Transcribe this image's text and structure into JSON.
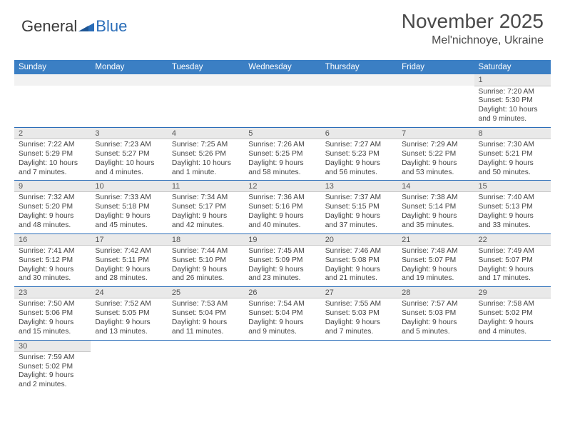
{
  "logo": {
    "text_dark": "General",
    "text_blue": "Blue",
    "triangle_color": "#2a6db8"
  },
  "header": {
    "month_title": "November 2025",
    "location": "Mel'nichnoye, Ukraine"
  },
  "colors": {
    "header_bg": "#3b7fc4",
    "header_text": "#ffffff",
    "daynum_bg": "#e9e9e9",
    "daynum_text": "#555555",
    "cell_text": "#444444",
    "rule": "#2a6db8"
  },
  "weekdays": [
    "Sunday",
    "Monday",
    "Tuesday",
    "Wednesday",
    "Thursday",
    "Friday",
    "Saturday"
  ],
  "weeks": [
    {
      "days": [
        null,
        null,
        null,
        null,
        null,
        null,
        {
          "num": "1",
          "sunrise": "Sunrise: 7:20 AM",
          "sunset": "Sunset: 5:30 PM",
          "daylight1": "Daylight: 10 hours",
          "daylight2": "and 9 minutes."
        }
      ]
    },
    {
      "days": [
        {
          "num": "2",
          "sunrise": "Sunrise: 7:22 AM",
          "sunset": "Sunset: 5:29 PM",
          "daylight1": "Daylight: 10 hours",
          "daylight2": "and 7 minutes."
        },
        {
          "num": "3",
          "sunrise": "Sunrise: 7:23 AM",
          "sunset": "Sunset: 5:27 PM",
          "daylight1": "Daylight: 10 hours",
          "daylight2": "and 4 minutes."
        },
        {
          "num": "4",
          "sunrise": "Sunrise: 7:25 AM",
          "sunset": "Sunset: 5:26 PM",
          "daylight1": "Daylight: 10 hours",
          "daylight2": "and 1 minute."
        },
        {
          "num": "5",
          "sunrise": "Sunrise: 7:26 AM",
          "sunset": "Sunset: 5:25 PM",
          "daylight1": "Daylight: 9 hours",
          "daylight2": "and 58 minutes."
        },
        {
          "num": "6",
          "sunrise": "Sunrise: 7:27 AM",
          "sunset": "Sunset: 5:23 PM",
          "daylight1": "Daylight: 9 hours",
          "daylight2": "and 56 minutes."
        },
        {
          "num": "7",
          "sunrise": "Sunrise: 7:29 AM",
          "sunset": "Sunset: 5:22 PM",
          "daylight1": "Daylight: 9 hours",
          "daylight2": "and 53 minutes."
        },
        {
          "num": "8",
          "sunrise": "Sunrise: 7:30 AM",
          "sunset": "Sunset: 5:21 PM",
          "daylight1": "Daylight: 9 hours",
          "daylight2": "and 50 minutes."
        }
      ]
    },
    {
      "days": [
        {
          "num": "9",
          "sunrise": "Sunrise: 7:32 AM",
          "sunset": "Sunset: 5:20 PM",
          "daylight1": "Daylight: 9 hours",
          "daylight2": "and 48 minutes."
        },
        {
          "num": "10",
          "sunrise": "Sunrise: 7:33 AM",
          "sunset": "Sunset: 5:18 PM",
          "daylight1": "Daylight: 9 hours",
          "daylight2": "and 45 minutes."
        },
        {
          "num": "11",
          "sunrise": "Sunrise: 7:34 AM",
          "sunset": "Sunset: 5:17 PM",
          "daylight1": "Daylight: 9 hours",
          "daylight2": "and 42 minutes."
        },
        {
          "num": "12",
          "sunrise": "Sunrise: 7:36 AM",
          "sunset": "Sunset: 5:16 PM",
          "daylight1": "Daylight: 9 hours",
          "daylight2": "and 40 minutes."
        },
        {
          "num": "13",
          "sunrise": "Sunrise: 7:37 AM",
          "sunset": "Sunset: 5:15 PM",
          "daylight1": "Daylight: 9 hours",
          "daylight2": "and 37 minutes."
        },
        {
          "num": "14",
          "sunrise": "Sunrise: 7:38 AM",
          "sunset": "Sunset: 5:14 PM",
          "daylight1": "Daylight: 9 hours",
          "daylight2": "and 35 minutes."
        },
        {
          "num": "15",
          "sunrise": "Sunrise: 7:40 AM",
          "sunset": "Sunset: 5:13 PM",
          "daylight1": "Daylight: 9 hours",
          "daylight2": "and 33 minutes."
        }
      ]
    },
    {
      "days": [
        {
          "num": "16",
          "sunrise": "Sunrise: 7:41 AM",
          "sunset": "Sunset: 5:12 PM",
          "daylight1": "Daylight: 9 hours",
          "daylight2": "and 30 minutes."
        },
        {
          "num": "17",
          "sunrise": "Sunrise: 7:42 AM",
          "sunset": "Sunset: 5:11 PM",
          "daylight1": "Daylight: 9 hours",
          "daylight2": "and 28 minutes."
        },
        {
          "num": "18",
          "sunrise": "Sunrise: 7:44 AM",
          "sunset": "Sunset: 5:10 PM",
          "daylight1": "Daylight: 9 hours",
          "daylight2": "and 26 minutes."
        },
        {
          "num": "19",
          "sunrise": "Sunrise: 7:45 AM",
          "sunset": "Sunset: 5:09 PM",
          "daylight1": "Daylight: 9 hours",
          "daylight2": "and 23 minutes."
        },
        {
          "num": "20",
          "sunrise": "Sunrise: 7:46 AM",
          "sunset": "Sunset: 5:08 PM",
          "daylight1": "Daylight: 9 hours",
          "daylight2": "and 21 minutes."
        },
        {
          "num": "21",
          "sunrise": "Sunrise: 7:48 AM",
          "sunset": "Sunset: 5:07 PM",
          "daylight1": "Daylight: 9 hours",
          "daylight2": "and 19 minutes."
        },
        {
          "num": "22",
          "sunrise": "Sunrise: 7:49 AM",
          "sunset": "Sunset: 5:07 PM",
          "daylight1": "Daylight: 9 hours",
          "daylight2": "and 17 minutes."
        }
      ]
    },
    {
      "days": [
        {
          "num": "23",
          "sunrise": "Sunrise: 7:50 AM",
          "sunset": "Sunset: 5:06 PM",
          "daylight1": "Daylight: 9 hours",
          "daylight2": "and 15 minutes."
        },
        {
          "num": "24",
          "sunrise": "Sunrise: 7:52 AM",
          "sunset": "Sunset: 5:05 PM",
          "daylight1": "Daylight: 9 hours",
          "daylight2": "and 13 minutes."
        },
        {
          "num": "25",
          "sunrise": "Sunrise: 7:53 AM",
          "sunset": "Sunset: 5:04 PM",
          "daylight1": "Daylight: 9 hours",
          "daylight2": "and 11 minutes."
        },
        {
          "num": "26",
          "sunrise": "Sunrise: 7:54 AM",
          "sunset": "Sunset: 5:04 PM",
          "daylight1": "Daylight: 9 hours",
          "daylight2": "and 9 minutes."
        },
        {
          "num": "27",
          "sunrise": "Sunrise: 7:55 AM",
          "sunset": "Sunset: 5:03 PM",
          "daylight1": "Daylight: 9 hours",
          "daylight2": "and 7 minutes."
        },
        {
          "num": "28",
          "sunrise": "Sunrise: 7:57 AM",
          "sunset": "Sunset: 5:03 PM",
          "daylight1": "Daylight: 9 hours",
          "daylight2": "and 5 minutes."
        },
        {
          "num": "29",
          "sunrise": "Sunrise: 7:58 AM",
          "sunset": "Sunset: 5:02 PM",
          "daylight1": "Daylight: 9 hours",
          "daylight2": "and 4 minutes."
        }
      ]
    },
    {
      "days": [
        {
          "num": "30",
          "sunrise": "Sunrise: 7:59 AM",
          "sunset": "Sunset: 5:02 PM",
          "daylight1": "Daylight: 9 hours",
          "daylight2": "and 2 minutes."
        },
        null,
        null,
        null,
        null,
        null,
        null
      ]
    }
  ]
}
